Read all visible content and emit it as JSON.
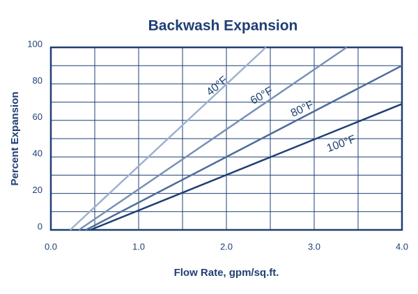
{
  "chart_data": {
    "type": "line",
    "title": "Backwash Expansion",
    "x_label": "Flow Rate, gpm/sq.ft.",
    "y_label": "Percent Expansion",
    "xlim": [
      0,
      4
    ],
    "ylim": [
      0,
      100
    ],
    "xticks": [
      {
        "value": 0,
        "label": "0.0"
      },
      {
        "value": 1,
        "label": "1.0"
      },
      {
        "value": 2,
        "label": "2.0"
      },
      {
        "value": 3,
        "label": "3.0"
      },
      {
        "value": 4,
        "label": "4.0"
      }
    ],
    "yticks": [
      0,
      20,
      40,
      60,
      80,
      100
    ],
    "x_minor_grid": [
      0.5,
      1.5,
      2.5,
      3.5
    ],
    "y_minor_grid": [
      10,
      30,
      50,
      70,
      90
    ],
    "grid": true,
    "grid_color": "#1f3f73",
    "series": [
      {
        "name": "40°F",
        "color": "#9db2cf",
        "x": [
          0.22,
          2.45
        ],
        "values": [
          0,
          100
        ]
      },
      {
        "name": "60°F",
        "color": "#7890b6",
        "x": [
          0.32,
          3.37
        ],
        "values": [
          0,
          100
        ]
      },
      {
        "name": "80°F",
        "color": "#4e6c9b",
        "x": [
          0.4,
          4.0
        ],
        "values": [
          0,
          90
        ]
      },
      {
        "name": "100°F",
        "color": "#1f3f73",
        "x": [
          0.45,
          4.0
        ],
        "values": [
          0,
          69
        ]
      }
    ]
  }
}
